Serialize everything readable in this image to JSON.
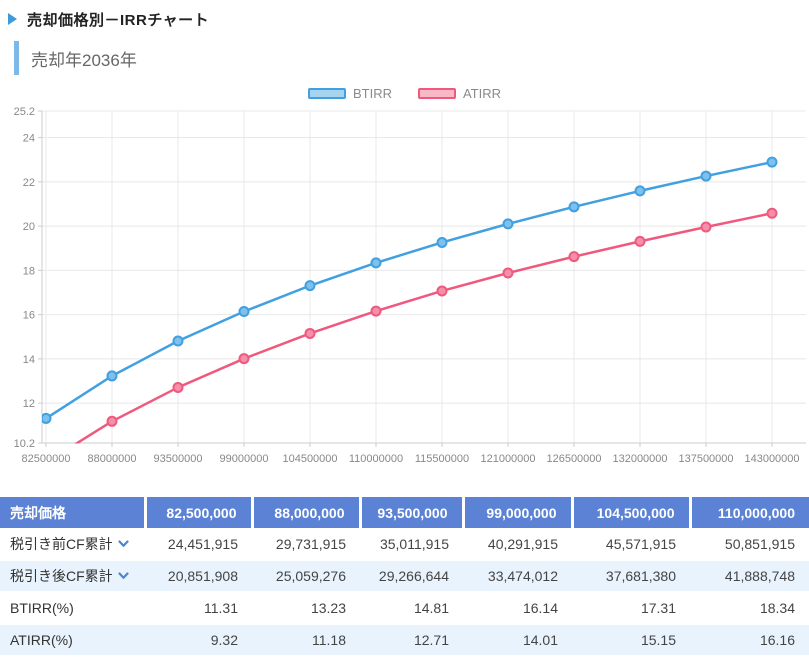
{
  "page": {
    "title": "売却価格別－IRRチャート",
    "subtitle": "売却年2036年"
  },
  "colors": {
    "btirr_line": "#41a0e0",
    "btirr_fill": "#a7d2f0",
    "btirr_marker": "#7fc0ec",
    "atirr_line": "#f0597e",
    "atirr_fill": "#f8b8c8",
    "atirr_marker": "#f590ab",
    "table_header_bg": "#5b82d4",
    "row_alt_bg": "#e9f3fd",
    "accent_bar": "#7db9e8",
    "grid": "#e8e8e8",
    "axis": "#cccccc",
    "tick_text": "#888888"
  },
  "chart_data": {
    "type": "line",
    "x": [
      82500000,
      88000000,
      93500000,
      99000000,
      104500000,
      110000000,
      115500000,
      121000000,
      126500000,
      132000000,
      137500000,
      143000000
    ],
    "series": [
      {
        "name": "BTIRR",
        "values": [
          11.31,
          13.23,
          14.81,
          16.14,
          17.31,
          18.34,
          19.26,
          20.1,
          20.87,
          21.59,
          22.26,
          22.89
        ]
      },
      {
        "name": "ATIRR",
        "values": [
          9.32,
          11.18,
          12.71,
          14.01,
          15.15,
          16.16,
          17.07,
          17.88,
          18.62,
          19.31,
          19.96,
          20.58
        ]
      }
    ],
    "ylim": [
      10.2,
      25.2
    ],
    "yticks": [
      10.2,
      12,
      14,
      16,
      18,
      20,
      22,
      24,
      25.2
    ],
    "grid": true,
    "legend_position": "top-center"
  },
  "table": {
    "header": [
      "売却価格",
      "82,500,000",
      "88,000,000",
      "93,500,000",
      "99,000,000",
      "104,500,000",
      "110,000,000"
    ],
    "rows": [
      {
        "label": "税引き前CF累計",
        "chevron": true,
        "values": [
          "24,451,915",
          "29,731,915",
          "35,011,915",
          "40,291,915",
          "45,571,915",
          "50,851,915"
        ]
      },
      {
        "label": "税引き後CF累計",
        "chevron": true,
        "values": [
          "20,851,908",
          "25,059,276",
          "29,266,644",
          "33,474,012",
          "37,681,380",
          "41,888,748"
        ]
      },
      {
        "label": "BTIRR(%)",
        "chevron": false,
        "values": [
          "11.31",
          "13.23",
          "14.81",
          "16.14",
          "17.31",
          "18.34"
        ]
      },
      {
        "label": "ATIRR(%)",
        "chevron": false,
        "values": [
          "9.32",
          "11.18",
          "12.71",
          "14.01",
          "15.15",
          "16.16"
        ]
      }
    ]
  }
}
